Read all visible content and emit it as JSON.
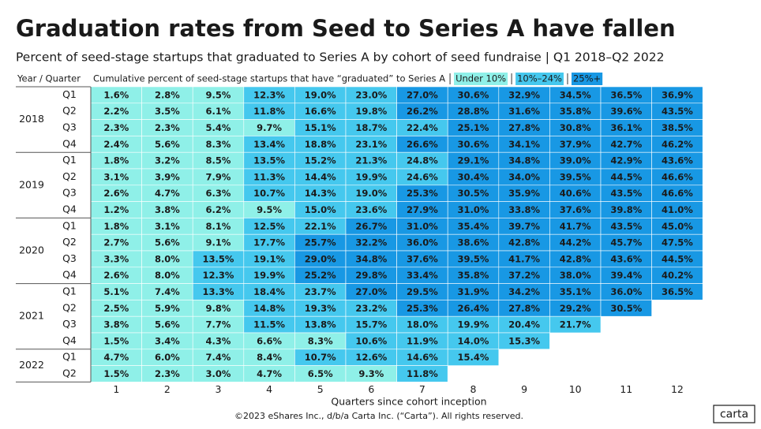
{
  "chart_data": {
    "type": "heatmap",
    "title": "Graduation rates from Seed to Series A have fallen",
    "subtitle": "Percent of seed-stage startups that graduated to Series A by cohort of seed fundraise | Q1 2018–Q2 2022",
    "row_header": "Year / Quarter",
    "value_header": "Cumulative percent of seed-stage startups that have “graduated” to Series A",
    "legend": [
      {
        "label": "Under 10%",
        "color": "#8ff0e8"
      },
      {
        "label": "10%–24%",
        "color": "#45c8ee"
      },
      {
        "label": "25%+",
        "color": "#1898e4"
      }
    ],
    "thresholds": [
      10,
      25
    ],
    "x": [
      1,
      2,
      3,
      4,
      5,
      6,
      7,
      8,
      9,
      10,
      11,
      12
    ],
    "xlabel": "Quarters since cohort inception",
    "groups": [
      {
        "year": "2018",
        "quarters": [
          "Q1",
          "Q2",
          "Q3",
          "Q4"
        ],
        "values": [
          [
            1.6,
            2.8,
            9.5,
            12.3,
            19.0,
            23.0,
            27.0,
            30.6,
            32.9,
            34.5,
            36.5,
            36.9
          ],
          [
            2.2,
            3.5,
            6.1,
            11.8,
            16.6,
            19.8,
            26.2,
            28.8,
            31.6,
            35.8,
            39.6,
            43.5
          ],
          [
            2.3,
            2.3,
            5.4,
            9.7,
            15.1,
            18.7,
            22.4,
            25.1,
            27.8,
            30.8,
            36.1,
            38.5
          ],
          [
            2.4,
            5.6,
            8.3,
            13.4,
            18.8,
            23.1,
            26.6,
            30.6,
            34.1,
            37.9,
            42.7,
            46.2
          ]
        ],
        "value_labels": [
          [
            "1.6%",
            "2.8%",
            "9.5%",
            "12.3%",
            "19.0%",
            "23.0%",
            "27.0%",
            "30.6%",
            "32.9%",
            "34.5%",
            "36.5%",
            "36.9%"
          ],
          [
            "2.2%",
            "3.5%",
            "6.1%",
            "11.8%",
            "16.6%",
            "19.8%",
            "26.2%",
            "28.8%",
            "31.6%",
            "35.8%",
            "39.6%",
            "43.5%"
          ],
          [
            "2.3%",
            "2.3%",
            "5.4%",
            "9.7%",
            "15.1%",
            "18.7%",
            "22.4%",
            "25.1%",
            "27.8%",
            "30.8%",
            "36.1%",
            "38.5%"
          ],
          [
            "2.4%",
            "5.6%",
            "8.3%",
            "13.4%",
            "18.8%",
            "23.1%",
            "26.6%",
            "30.6%",
            "34.1%",
            "37.9%",
            "42.7%",
            "46.2%"
          ]
        ]
      },
      {
        "year": "2019",
        "quarters": [
          "Q1",
          "Q2",
          "Q3",
          "Q4"
        ],
        "values": [
          [
            1.8,
            3.2,
            8.5,
            13.5,
            15.2,
            21.3,
            24.8,
            29.1,
            34.8,
            39.0,
            42.9,
            43.6
          ],
          [
            3.1,
            3.9,
            7.9,
            11.3,
            14.4,
            19.9,
            24.6,
            30.4,
            34.0,
            39.5,
            44.5,
            46.6
          ],
          [
            2.6,
            4.7,
            6.3,
            10.7,
            14.3,
            19.0,
            25.3,
            30.5,
            35.9,
            40.6,
            43.5,
            46.6
          ],
          [
            1.2,
            3.8,
            6.2,
            9.5,
            15.0,
            23.6,
            27.9,
            31.0,
            33.8,
            37.6,
            39.8,
            41.0
          ]
        ],
        "value_labels": [
          [
            "1.8%",
            "3.2%",
            "8.5%",
            "13.5%",
            "15.2%",
            "21.3%",
            "24.8%",
            "29.1%",
            "34.8%",
            "39.0%",
            "42.9%",
            "43.6%"
          ],
          [
            "3.1%",
            "3.9%",
            "7.9%",
            "11.3%",
            "14.4%",
            "19.9%",
            "24.6%",
            "30.4%",
            "34.0%",
            "39.5%",
            "44.5%",
            "46.6%"
          ],
          [
            "2.6%",
            "4.7%",
            "6.3%",
            "10.7%",
            "14.3%",
            "19.0%",
            "25.3%",
            "30.5%",
            "35.9%",
            "40.6%",
            "43.5%",
            "46.6%"
          ],
          [
            "1.2%",
            "3.8%",
            "6.2%",
            "9.5%",
            "15.0%",
            "23.6%",
            "27.9%",
            "31.0%",
            "33.8%",
            "37.6%",
            "39.8%",
            "41.0%"
          ]
        ]
      },
      {
        "year": "2020",
        "quarters": [
          "Q1",
          "Q2",
          "Q3",
          "Q4"
        ],
        "values": [
          [
            1.8,
            3.1,
            8.1,
            12.5,
            22.1,
            26.7,
            31.0,
            35.4,
            39.7,
            41.7,
            43.5,
            45.0
          ],
          [
            2.7,
            5.6,
            9.1,
            17.7,
            25.7,
            32.2,
            36.0,
            38.6,
            42.8,
            44.2,
            45.7,
            47.5
          ],
          [
            3.3,
            8.0,
            13.5,
            19.1,
            29.0,
            34.8,
            37.6,
            39.5,
            41.7,
            42.8,
            43.6,
            44.5
          ],
          [
            2.6,
            8.0,
            12.3,
            19.9,
            25.2,
            29.8,
            33.4,
            35.8,
            37.2,
            38.0,
            39.4,
            40.2
          ]
        ],
        "value_labels": [
          [
            "1.8%",
            "3.1%",
            "8.1%",
            "12.5%",
            "22.1%",
            "26.7%",
            "31.0%",
            "35.4%",
            "39.7%",
            "41.7%",
            "43.5%",
            "45.0%"
          ],
          [
            "2.7%",
            "5.6%",
            "9.1%",
            "17.7%",
            "25.7%",
            "32.2%",
            "36.0%",
            "38.6%",
            "42.8%",
            "44.2%",
            "45.7%",
            "47.5%"
          ],
          [
            "3.3%",
            "8.0%",
            "13.5%",
            "19.1%",
            "29.0%",
            "34.8%",
            "37.6%",
            "39.5%",
            "41.7%",
            "42.8%",
            "43.6%",
            "44.5%"
          ],
          [
            "2.6%",
            "8.0%",
            "12.3%",
            "19.9%",
            "25.2%",
            "29.8%",
            "33.4%",
            "35.8%",
            "37.2%",
            "38.0%",
            "39.4%",
            "40.2%"
          ]
        ]
      },
      {
        "year": "2021",
        "quarters": [
          "Q1",
          "Q2",
          "Q3",
          "Q4"
        ],
        "values": [
          [
            5.1,
            7.4,
            13.3,
            18.4,
            23.7,
            27.0,
            29.5,
            31.9,
            34.2,
            35.1,
            36.0,
            36.5
          ],
          [
            2.5,
            5.9,
            9.8,
            14.8,
            19.3,
            23.2,
            25.3,
            26.4,
            27.8,
            29.2,
            30.5
          ],
          [
            3.8,
            5.6,
            7.7,
            11.5,
            13.8,
            15.7,
            18.0,
            19.9,
            20.4,
            21.7
          ],
          [
            1.5,
            3.4,
            4.3,
            6.6,
            8.3,
            10.6,
            11.9,
            14.0,
            15.3
          ]
        ],
        "value_labels": [
          [
            "5.1%",
            "7.4%",
            "13.3%",
            "18.4%",
            "23.7%",
            "27.0%",
            "29.5%",
            "31.9%",
            "34.2%",
            "35.1%",
            "36.0%",
            "36.5%"
          ],
          [
            "2.5%",
            "5.9%",
            "9.8%",
            "14.8%",
            "19.3%",
            "23.2%",
            "25.3%",
            "26.4%",
            "27.8%",
            "29.2%",
            "30.5%"
          ],
          [
            "3.8%",
            "5.6%",
            "7.7%",
            "11.5%",
            "13.8%",
            "15.7%",
            "18.0%",
            "19.9%",
            "20.4%",
            "21.7%"
          ],
          [
            "1.5%",
            "3.4%",
            "4.3%",
            "6.6%",
            "8.3%",
            "10.6%",
            "11.9%",
            "14.0%",
            "15.3%"
          ]
        ]
      },
      {
        "year": "2022",
        "quarters": [
          "Q1",
          "Q2"
        ],
        "values": [
          [
            4.7,
            6.0,
            7.4,
            8.4,
            10.7,
            12.6,
            14.6,
            15.4
          ],
          [
            1.5,
            2.3,
            3.0,
            4.7,
            6.5,
            9.3,
            11.8
          ]
        ],
        "value_labels": [
          [
            "4.7%",
            "6.0%",
            "7.4%",
            "8.4%",
            "10.7%",
            "12.6%",
            "14.6%",
            "15.4%"
          ],
          [
            "1.5%",
            "2.3%",
            "3.0%",
            "4.7%",
            "6.5%",
            "9.3%",
            "11.8%"
          ]
        ]
      }
    ],
    "footer": "©2023 eShares Inc., d/b/a Carta Inc. (“Carta”). All rights reserved.",
    "logo": "carta"
  }
}
